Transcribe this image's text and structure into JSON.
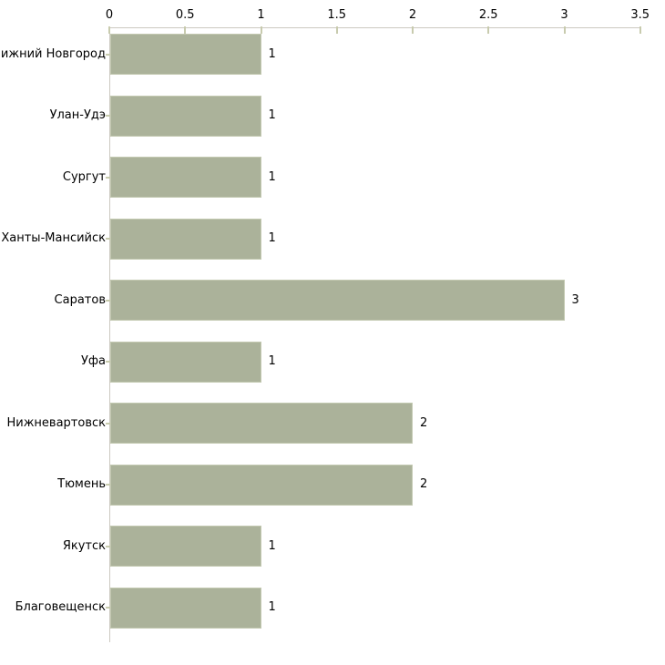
{
  "chart_data": {
    "type": "bar",
    "orientation": "horizontal",
    "title": "",
    "xlabel": "",
    "ylabel": "",
    "categories": [
      "Нижний Новгород",
      "Улан-Удэ",
      "Сургут",
      "Ханты-Мансийск",
      "Саратов",
      "Уфа",
      "Нижневартовск",
      "Тюмень",
      "Якутск",
      "Благовещенск"
    ],
    "values": [
      1,
      1,
      1,
      1,
      3,
      1,
      2,
      2,
      1,
      1
    ],
    "value_labels": [
      "1",
      "1",
      "1",
      "1",
      "3",
      "1",
      "2",
      "2",
      "1",
      "1"
    ],
    "x_ticks": [
      0,
      0.5,
      1,
      1.5,
      2,
      2.5,
      3,
      3.5
    ],
    "x_tick_labels": [
      "0",
      "0.5",
      "1",
      "1.5",
      "2",
      "2.5",
      "3",
      "3.5"
    ],
    "xlim": [
      0,
      3.5
    ],
    "grid": false,
    "legend": null,
    "axis_position": "top",
    "colors": {
      "bar_fill": "#abb29a",
      "bar_border": "#c3c9b1",
      "axis_line": "#ccc9c1",
      "tick_mark": "#c8cbae",
      "text": "#000000",
      "background": "#ffffff"
    }
  }
}
